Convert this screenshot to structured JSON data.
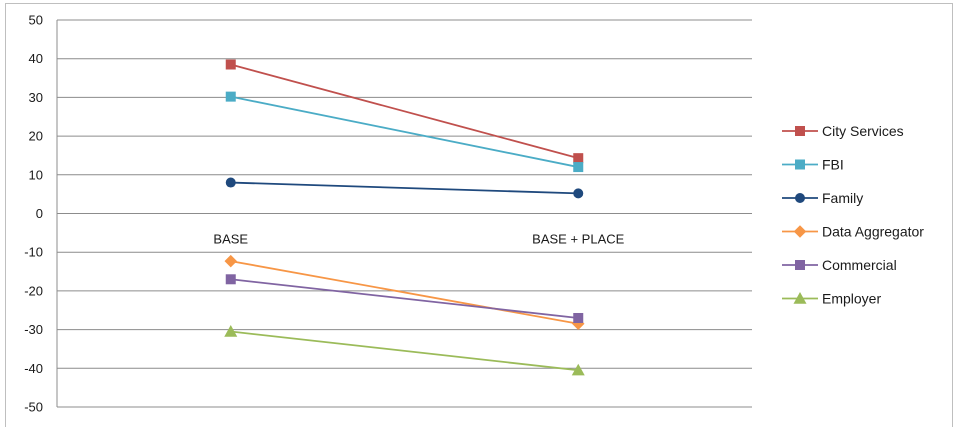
{
  "chart_data": {
    "type": "line",
    "title": "",
    "xlabel": "",
    "ylabel": "",
    "categories": [
      "BASE",
      "BASE + PLACE"
    ],
    "ylim": [
      -50,
      50
    ],
    "ytick_step": 10,
    "grid": true,
    "legend_position": "right",
    "series": [
      {
        "name": "City Services",
        "values": [
          38.5,
          14.3
        ],
        "color": "#c0504d",
        "marker": "square"
      },
      {
        "name": "FBI",
        "values": [
          30.2,
          12.0
        ],
        "color": "#4bacc6",
        "marker": "square"
      },
      {
        "name": "Family",
        "values": [
          8.0,
          5.2
        ],
        "color": "#1f497d",
        "marker": "circle"
      },
      {
        "name": "Data Aggregator",
        "values": [
          -12.3,
          -28.5
        ],
        "color": "#f79646",
        "marker": "diamond"
      },
      {
        "name": "Commercial",
        "values": [
          -17.0,
          -27.0
        ],
        "color": "#8064a2",
        "marker": "square"
      },
      {
        "name": "Employer",
        "values": [
          -30.5,
          -40.5
        ],
        "color": "#9bbb59",
        "marker": "triangle"
      }
    ]
  }
}
